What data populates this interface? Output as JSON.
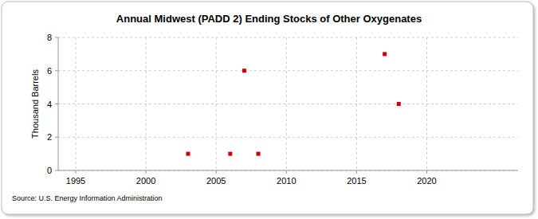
{
  "chart_data": {
    "type": "scatter",
    "title": "Annual Midwest (PADD 2) Ending Stocks of Other Oxygenates",
    "y_label": "Thousand Barrels",
    "source": "Source: U.S. Energy Information Administration",
    "x": [
      2003,
      2006,
      2007,
      2008,
      2017,
      2018
    ],
    "values": [
      1,
      1,
      6,
      1,
      7,
      4
    ],
    "color": "#cc0000",
    "marker": "square",
    "xlim": [
      1993.75,
      2026.5
    ],
    "xticks": [
      1995,
      2000,
      2005,
      2010,
      2015,
      2020
    ],
    "ylim": [
      0,
      8
    ],
    "yticks": [
      0,
      2,
      4,
      6,
      8
    ],
    "grid": true
  }
}
